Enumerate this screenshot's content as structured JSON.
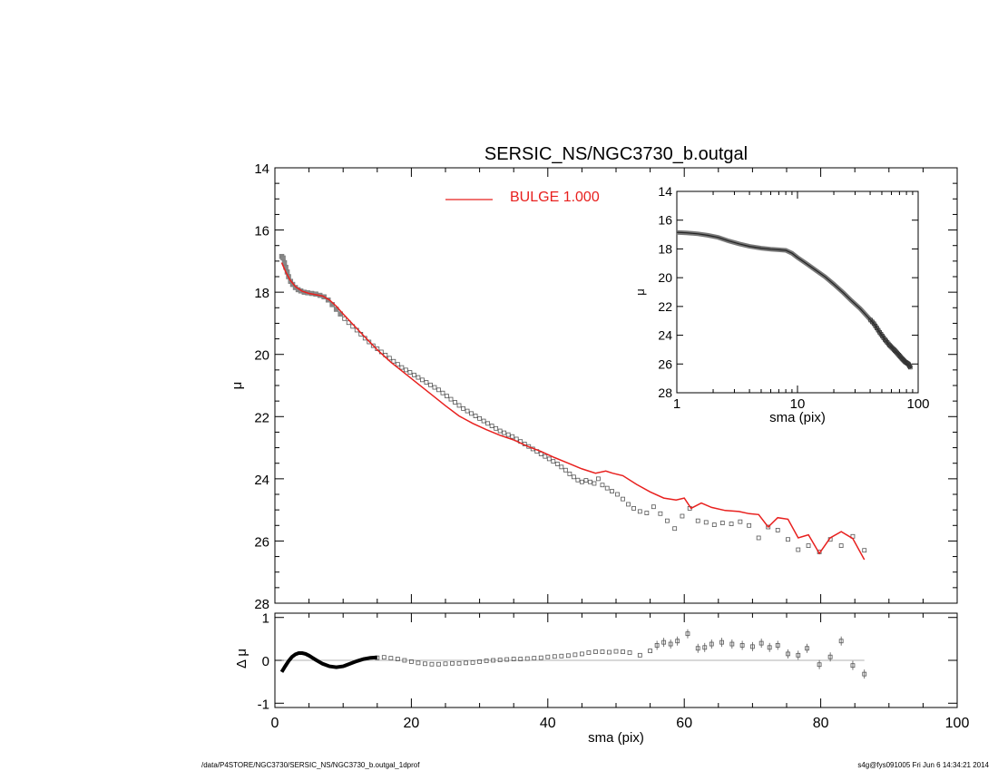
{
  "footer": {
    "path": "/data/P4STORE/NGC3730/SERSIC_NS/NGC3730_b.outgal_1dprof",
    "user": "s4g@fys091005  Fri Jun  6 14:34:21 2014"
  },
  "colors": {
    "model": "#e8201e",
    "data": "#555555",
    "axis": "#000000",
    "zero_line": "#999999"
  },
  "chart_data": [
    {
      "type": "scatter",
      "title": "SERSIC_NS/NGC3730_b.outgal",
      "ylabel": "μ",
      "xlabel": "",
      "xlim": [
        0,
        100
      ],
      "ylim": [
        28,
        14
      ],
      "yticks": [
        14,
        16,
        18,
        20,
        22,
        24,
        26,
        28
      ],
      "legend": {
        "label": "BULGE  1.000",
        "placement": "top"
      },
      "series": [
        {
          "kind": "points",
          "x": [
            1.0,
            1.2,
            1.4,
            1.6,
            1.8,
            2.0,
            2.3,
            2.6,
            3.0,
            3.4,
            3.8,
            4.3,
            4.8,
            5.4,
            6.0,
            6.6,
            7.2,
            7.8,
            8.4,
            9.0,
            9.6,
            10.2,
            10.8,
            11.4,
            12.0,
            12.6,
            13.2,
            13.8,
            14.4,
            15.0,
            15.6,
            16.2,
            16.8,
            17.4,
            18.0,
            18.6,
            19.2,
            19.8,
            20.4,
            21.0,
            21.6,
            22.2,
            22.8,
            23.4,
            24.0,
            24.6,
            25.2,
            25.8,
            26.4,
            27.0,
            27.6,
            28.2,
            28.8,
            29.4,
            30.0,
            30.6,
            31.2,
            31.8,
            32.4,
            33.0,
            33.6,
            34.2,
            34.8,
            35.4,
            36.0,
            36.6,
            37.2,
            37.8,
            38.4,
            39.0,
            39.6,
            40.2,
            40.8,
            41.4,
            42.0,
            42.6,
            43.2,
            43.8,
            44.4,
            45.0,
            45.6,
            46.2,
            46.8,
            47.4,
            48.0,
            48.7,
            49.4,
            50.2,
            51.0,
            51.8,
            52.6,
            53.5,
            54.5,
            55.5,
            56.5,
            57.5,
            58.6,
            59.7,
            60.8,
            62.0,
            63.2,
            64.4,
            65.6,
            66.9,
            68.2,
            69.5,
            70.9,
            72.3,
            73.7,
            75.2,
            76.7,
            78.2,
            79.8,
            81.4,
            83.0,
            84.7,
            86.4
          ],
          "y": [
            16.85,
            16.9,
            17.05,
            17.2,
            17.35,
            17.5,
            17.65,
            17.75,
            17.85,
            17.92,
            17.96,
            18.0,
            18.02,
            18.04,
            18.06,
            18.1,
            18.15,
            18.25,
            18.4,
            18.55,
            18.7,
            18.85,
            18.98,
            19.1,
            19.22,
            19.35,
            19.48,
            19.6,
            19.72,
            19.82,
            19.92,
            20.02,
            20.12,
            20.22,
            20.32,
            20.42,
            20.5,
            20.58,
            20.66,
            20.74,
            20.82,
            20.9,
            20.98,
            21.06,
            21.14,
            21.24,
            21.34,
            21.44,
            21.54,
            21.64,
            21.74,
            21.82,
            21.9,
            21.98,
            22.06,
            22.14,
            22.22,
            22.3,
            22.38,
            22.46,
            22.52,
            22.58,
            22.64,
            22.72,
            22.8,
            22.88,
            22.96,
            23.04,
            23.12,
            23.2,
            23.28,
            23.36,
            23.44,
            23.52,
            23.62,
            23.72,
            23.84,
            23.94,
            24.04,
            24.1,
            24.05,
            24.1,
            24.15,
            24.0,
            24.2,
            24.3,
            24.4,
            24.5,
            24.65,
            24.82,
            24.95,
            25.05,
            25.1,
            24.9,
            25.12,
            25.35,
            25.6,
            25.2,
            24.95,
            25.35,
            25.4,
            25.48,
            25.42,
            25.45,
            25.38,
            25.5,
            25.9,
            25.55,
            25.65,
            25.95,
            26.28,
            26.15,
            26.35,
            25.95,
            26.15,
            25.85,
            26.3
          ]
        },
        {
          "kind": "line",
          "name": "BULGE  1.000",
          "x": [
            1.0,
            1.6,
            2.2,
            3.0,
            4.0,
            5.0,
            6.0,
            7.0,
            8.0,
            9.0,
            10.0,
            11.5,
            13.0,
            15.0,
            17.0,
            19.0,
            21.0,
            23.0,
            25.0,
            27.0,
            29.0,
            31.0,
            33.0,
            35.0,
            37.0,
            39.0,
            41.0,
            43.0,
            45.0,
            47.0,
            48.5,
            49.5,
            51.0,
            53.0,
            55.0,
            57.0,
            58.8,
            60.0,
            61.0,
            62.5,
            64.0,
            66.0,
            68.0,
            69.5,
            70.9,
            72.3,
            73.7,
            75.2,
            76.7,
            78.2,
            79.8,
            81.4,
            83.0,
            84.7,
            86.4
          ],
          "y": [
            17.05,
            17.35,
            17.6,
            17.82,
            17.97,
            18.04,
            18.08,
            18.12,
            18.25,
            18.45,
            18.7,
            19.05,
            19.4,
            19.85,
            20.25,
            20.6,
            20.95,
            21.3,
            21.65,
            21.98,
            22.22,
            22.42,
            22.6,
            22.75,
            22.95,
            23.12,
            23.32,
            23.5,
            23.68,
            23.82,
            23.75,
            23.82,
            23.9,
            24.18,
            24.42,
            24.62,
            24.68,
            24.62,
            24.95,
            24.78,
            24.92,
            25.02,
            25.05,
            25.12,
            25.15,
            25.55,
            25.25,
            25.3,
            25.9,
            25.8,
            26.4,
            25.9,
            25.7,
            25.92,
            26.6
          ]
        }
      ]
    },
    {
      "type": "scatter",
      "title": "",
      "xlabel": "sma (pix)",
      "ylabel": "μ",
      "xscale": "log",
      "xlim": [
        1,
        100
      ],
      "ylim": [
        28,
        14
      ],
      "xticks": [
        1,
        10,
        100
      ],
      "yticks": [
        14,
        16,
        18,
        20,
        22,
        24,
        26,
        28
      ],
      "series": [
        {
          "kind": "profile",
          "x": [
            1.0,
            1.2,
            1.5,
            1.8,
            2.2,
            2.7,
            3.3,
            4.0,
            5.0,
            6.0,
            7.0,
            8.0,
            9.0,
            10.0,
            12.0,
            14.0,
            17.0,
            20.0,
            24.0,
            28.0,
            33.0,
            38.0,
            43.0,
            48.0,
            53.0,
            58.0,
            63.0,
            68.0,
            73.0,
            78.0,
            83.0,
            87.0
          ],
          "y": [
            16.85,
            16.88,
            16.95,
            17.05,
            17.2,
            17.45,
            17.65,
            17.82,
            17.95,
            18.02,
            18.06,
            18.1,
            18.3,
            18.6,
            19.05,
            19.45,
            19.95,
            20.45,
            21.05,
            21.6,
            22.15,
            22.7,
            23.2,
            23.8,
            24.3,
            24.7,
            25.0,
            25.3,
            25.6,
            25.85,
            26.0,
            26.3
          ]
        }
      ]
    },
    {
      "type": "scatter",
      "title": "",
      "xlabel": "sma (pix)",
      "ylabel": "Δ μ",
      "xlim": [
        0,
        100
      ],
      "ylim": [
        -1.1,
        1.1
      ],
      "xticks": [
        0,
        20,
        40,
        60,
        80,
        100
      ],
      "yticks": [
        -1,
        0,
        1
      ],
      "series": [
        {
          "kind": "points",
          "x": [
            15.0,
            16.0,
            17.0,
            18.0,
            19.0,
            20.0,
            21.0,
            22.0,
            23.0,
            24.0,
            25.0,
            26.0,
            27.0,
            28.0,
            29.0,
            30.0,
            31.0,
            32.0,
            33.0,
            34.0,
            35.0,
            36.0,
            37.0,
            38.0,
            39.0,
            40.0,
            41.0,
            42.0,
            43.0,
            44.0,
            45.0,
            46.0,
            47.0,
            48.0,
            49.0,
            50.0,
            51.0,
            52.0,
            53.5,
            55.0,
            56.0,
            57.0,
            58.0,
            59.0,
            60.5,
            62.0,
            63.0,
            64.0,
            65.5,
            67.0,
            68.5,
            70.0,
            71.3,
            72.5,
            73.7,
            75.2,
            76.7,
            78.0,
            79.8,
            81.4,
            83.0,
            84.7,
            86.4
          ],
          "y": [
            0.06,
            0.07,
            0.05,
            0.03,
            0.0,
            -0.03,
            -0.06,
            -0.08,
            -0.09,
            -0.09,
            -0.08,
            -0.07,
            -0.07,
            -0.06,
            -0.05,
            -0.03,
            -0.01,
            0.0,
            0.01,
            0.02,
            0.03,
            0.03,
            0.04,
            0.05,
            0.06,
            0.08,
            0.09,
            0.1,
            0.11,
            0.13,
            0.15,
            0.18,
            0.2,
            0.2,
            0.19,
            0.21,
            0.2,
            0.18,
            0.12,
            0.22,
            0.35,
            0.42,
            0.38,
            0.45,
            0.62,
            0.28,
            0.3,
            0.38,
            0.42,
            0.38,
            0.35,
            0.32,
            0.4,
            0.3,
            0.35,
            0.15,
            0.12,
            0.28,
            -0.1,
            0.08,
            0.45,
            -0.12,
            -0.32
          ]
        },
        {
          "kind": "line",
          "x": [
            1.0,
            1.5,
            2.0,
            2.5,
            3.0,
            3.5,
            4.0,
            4.5,
            5.0,
            5.5,
            6.0,
            7.0,
            8.0,
            9.0,
            10.0,
            11.0,
            12.0,
            13.0,
            14.0,
            15.0
          ],
          "y": [
            -0.27,
            -0.14,
            -0.02,
            0.08,
            0.14,
            0.17,
            0.17,
            0.15,
            0.11,
            0.06,
            0.01,
            -0.08,
            -0.14,
            -0.16,
            -0.14,
            -0.08,
            -0.02,
            0.03,
            0.06,
            0.07
          ]
        }
      ]
    }
  ]
}
